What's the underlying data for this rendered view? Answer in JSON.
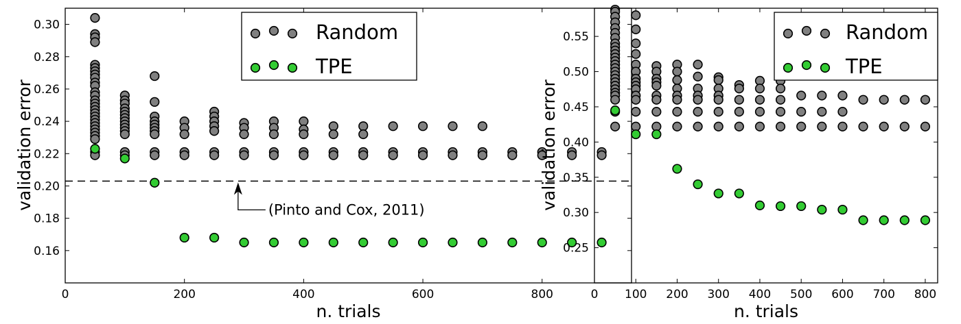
{
  "chart_data": [
    {
      "type": "scatter",
      "xlabel": "n. trials",
      "ylabel": "validation error",
      "xlim": [
        0,
        950
      ],
      "ylim": [
        0.14,
        0.31
      ],
      "xticks": [
        0,
        200,
        400,
        600,
        800
      ],
      "xtick_labels": [
        "0",
        "200",
        "400",
        "600",
        "800"
      ],
      "yticks": [
        0.16,
        0.18,
        0.2,
        0.22,
        0.24,
        0.26,
        0.28,
        0.3
      ],
      "ytick_labels": [
        "0.16",
        "0.18",
        "0.20",
        "0.22",
        "0.24",
        "0.26",
        "0.28",
        "0.30"
      ],
      "grid": false,
      "legend": {
        "placement": "top-right",
        "entries": [
          {
            "label": "Random",
            "color": "#808080"
          },
          {
            "label": "TPE",
            "color": "#33cc33"
          }
        ]
      },
      "reference_line": {
        "y": 0.203,
        "style": "dashed",
        "label": "(Pinto and Cox, 2011)",
        "arrow_x": 290
      },
      "series": [
        {
          "name": "Random",
          "color": "#808080",
          "points": [
            {
              "x": 50,
              "y": [
                0.304,
                0.294,
                0.292,
                0.289,
                0.275,
                0.273,
                0.271,
                0.269,
                0.267,
                0.264,
                0.262,
                0.258,
                0.256,
                0.253,
                0.251,
                0.249,
                0.247,
                0.245,
                0.243,
                0.241,
                0.239,
                0.237,
                0.235,
                0.233,
                0.231,
                0.229,
                0.221,
                0.219
              ]
            },
            {
              "x": 100,
              "y": [
                0.256,
                0.253,
                0.251,
                0.248,
                0.246,
                0.244,
                0.242,
                0.24,
                0.238,
                0.236,
                0.234,
                0.232,
                0.221,
                0.219
              ]
            },
            {
              "x": 150,
              "y": [
                0.268,
                0.252,
                0.243,
                0.24,
                0.238,
                0.236,
                0.234,
                0.232,
                0.221,
                0.219
              ]
            },
            {
              "x": 200,
              "y": [
                0.24,
                0.236,
                0.232,
                0.221,
                0.219
              ]
            },
            {
              "x": 250,
              "y": [
                0.246,
                0.243,
                0.24,
                0.237,
                0.234,
                0.221,
                0.219
              ]
            },
            {
              "x": 300,
              "y": [
                0.239,
                0.236,
                0.232,
                0.221,
                0.219
              ]
            },
            {
              "x": 350,
              "y": [
                0.24,
                0.236,
                0.232,
                0.221,
                0.219
              ]
            },
            {
              "x": 400,
              "y": [
                0.24,
                0.235,
                0.232,
                0.221,
                0.219
              ]
            },
            {
              "x": 450,
              "y": [
                0.237,
                0.232,
                0.221,
                0.219
              ]
            },
            {
              "x": 500,
              "y": [
                0.237,
                0.232,
                0.221,
                0.219
              ]
            },
            {
              "x": 550,
              "y": [
                0.237,
                0.221,
                0.219
              ]
            },
            {
              "x": 600,
              "y": [
                0.237,
                0.221,
                0.219
              ]
            },
            {
              "x": 650,
              "y": [
                0.237,
                0.221,
                0.219
              ]
            },
            {
              "x": 700,
              "y": [
                0.237,
                0.221,
                0.219
              ]
            },
            {
              "x": 750,
              "y": [
                0.221,
                0.219
              ]
            },
            {
              "x": 800,
              "y": [
                0.221,
                0.219
              ]
            },
            {
              "x": 850,
              "y": [
                0.221,
                0.219
              ]
            },
            {
              "x": 900,
              "y": [
                0.221,
                0.219
              ]
            }
          ]
        },
        {
          "name": "TPE",
          "color": "#33cc33",
          "points": [
            {
              "x": 50,
              "y": [
                0.223
              ]
            },
            {
              "x": 100,
              "y": [
                0.217
              ]
            },
            {
              "x": 150,
              "y": [
                0.202
              ]
            },
            {
              "x": 200,
              "y": [
                0.168
              ]
            },
            {
              "x": 250,
              "y": [
                0.168
              ]
            },
            {
              "x": 300,
              "y": [
                0.165
              ]
            },
            {
              "x": 350,
              "y": [
                0.165
              ]
            },
            {
              "x": 400,
              "y": [
                0.165
              ]
            },
            {
              "x": 450,
              "y": [
                0.165
              ]
            },
            {
              "x": 500,
              "y": [
                0.165
              ]
            },
            {
              "x": 550,
              "y": [
                0.165
              ]
            },
            {
              "x": 600,
              "y": [
                0.165
              ]
            },
            {
              "x": 650,
              "y": [
                0.165
              ]
            },
            {
              "x": 700,
              "y": [
                0.165
              ]
            },
            {
              "x": 750,
              "y": [
                0.165
              ]
            },
            {
              "x": 800,
              "y": [
                0.165
              ]
            },
            {
              "x": 850,
              "y": [
                0.165
              ]
            },
            {
              "x": 900,
              "y": [
                0.165
              ]
            }
          ]
        }
      ]
    },
    {
      "type": "scatter",
      "xlabel": "n. trials",
      "ylabel": "validation error",
      "xlim": [
        0,
        830
      ],
      "ylim": [
        0.2,
        0.59
      ],
      "xticks": [
        0,
        100,
        200,
        300,
        400,
        500,
        600,
        700,
        800
      ],
      "xtick_labels": [
        "0",
        "100",
        "200",
        "300",
        "400",
        "500",
        "600",
        "700",
        "800"
      ],
      "yticks": [
        0.25,
        0.3,
        0.35,
        0.4,
        0.45,
        0.5,
        0.55
      ],
      "ytick_labels": [
        "0.25",
        "0.30",
        "0.35",
        "0.40",
        "0.45",
        "0.50",
        "0.55"
      ],
      "grid": false,
      "legend": {
        "placement": "top-right",
        "entries": [
          {
            "label": "Random",
            "color": "#808080"
          },
          {
            "label": "TPE",
            "color": "#33cc33"
          }
        ]
      },
      "series": [
        {
          "name": "Random",
          "color": "#808080",
          "points": [
            {
              "x": 50,
              "y": [
                0.588,
                0.585,
                0.578,
                0.57,
                0.562,
                0.555,
                0.548,
                0.54,
                0.535,
                0.53,
                0.525,
                0.52,
                0.515,
                0.51,
                0.505,
                0.5,
                0.495,
                0.49,
                0.485,
                0.48,
                0.475,
                0.47,
                0.466,
                0.46,
                0.443,
                0.422
              ]
            },
            {
              "x": 100,
              "y": [
                0.58,
                0.56,
                0.54,
                0.525,
                0.51,
                0.5,
                0.49,
                0.485,
                0.48,
                0.475,
                0.466,
                0.46,
                0.443,
                0.422
              ]
            },
            {
              "x": 150,
              "y": [
                0.508,
                0.5,
                0.49,
                0.485,
                0.48,
                0.466,
                0.46,
                0.443,
                0.422
              ]
            },
            {
              "x": 200,
              "y": [
                0.51,
                0.5,
                0.488,
                0.476,
                0.466,
                0.46,
                0.443,
                0.422
              ]
            },
            {
              "x": 250,
              "y": [
                0.51,
                0.493,
                0.476,
                0.466,
                0.46,
                0.443,
                0.422
              ]
            },
            {
              "x": 300,
              "y": [
                0.492,
                0.488,
                0.476,
                0.466,
                0.46,
                0.443,
                0.422
              ]
            },
            {
              "x": 350,
              "y": [
                0.481,
                0.476,
                0.46,
                0.443,
                0.422
              ]
            },
            {
              "x": 400,
              "y": [
                0.487,
                0.476,
                0.46,
                0.443,
                0.422
              ]
            },
            {
              "x": 450,
              "y": [
                0.487,
                0.476,
                0.46,
                0.443,
                0.422
              ]
            },
            {
              "x": 500,
              "y": [
                0.466,
                0.443,
                0.422
              ]
            },
            {
              "x": 550,
              "y": [
                0.466,
                0.443,
                0.422
              ]
            },
            {
              "x": 600,
              "y": [
                0.466,
                0.443,
                0.422
              ]
            },
            {
              "x": 650,
              "y": [
                0.46,
                0.422
              ]
            },
            {
              "x": 700,
              "y": [
                0.46,
                0.422
              ]
            },
            {
              "x": 750,
              "y": [
                0.46,
                0.422
              ]
            },
            {
              "x": 800,
              "y": [
                0.46,
                0.422
              ]
            }
          ]
        },
        {
          "name": "TPE",
          "color": "#33cc33",
          "points": [
            {
              "x": 50,
              "y": [
                0.445
              ]
            },
            {
              "x": 100,
              "y": [
                0.411
              ]
            },
            {
              "x": 150,
              "y": [
                0.411
              ]
            },
            {
              "x": 200,
              "y": [
                0.362
              ]
            },
            {
              "x": 250,
              "y": [
                0.34
              ]
            },
            {
              "x": 300,
              "y": [
                0.327
              ]
            },
            {
              "x": 350,
              "y": [
                0.327
              ]
            },
            {
              "x": 400,
              "y": [
                0.31
              ]
            },
            {
              "x": 450,
              "y": [
                0.309
              ]
            },
            {
              "x": 500,
              "y": [
                0.309
              ]
            },
            {
              "x": 550,
              "y": [
                0.304
              ]
            },
            {
              "x": 600,
              "y": [
                0.304
              ]
            },
            {
              "x": 650,
              "y": [
                0.289
              ]
            },
            {
              "x": 700,
              "y": [
                0.289
              ]
            },
            {
              "x": 750,
              "y": [
                0.289
              ]
            },
            {
              "x": 800,
              "y": [
                0.289
              ]
            }
          ]
        }
      ]
    }
  ]
}
